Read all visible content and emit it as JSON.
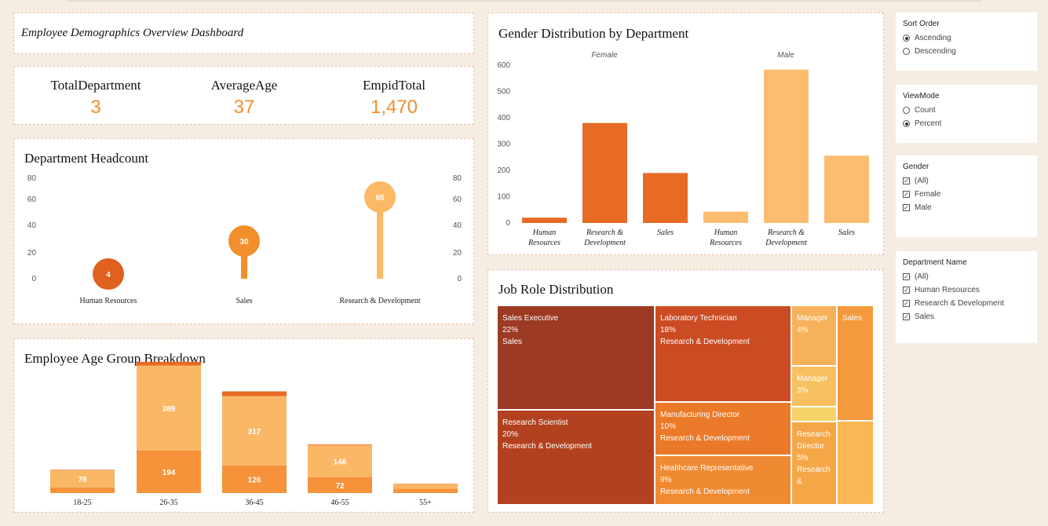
{
  "header": {
    "title": "Employee Demographics Overview Dashboard"
  },
  "kpis": [
    {
      "label": "TotalDepartment",
      "value": "3"
    },
    {
      "label": "AverageAge",
      "value": "37"
    },
    {
      "label": "EmpidTotal",
      "value": "1,470"
    }
  ],
  "headcount": {
    "title": "Department Headcount",
    "ticks": [
      "80",
      "60",
      "40",
      "20",
      "0"
    ],
    "colors": [
      "#e0601f",
      "#f28e2b",
      "#fbb965"
    ]
  },
  "gender_chart": {
    "title": "Gender Distribution by Department",
    "panels": [
      "Female",
      "Male"
    ],
    "ticks": [
      "600",
      "500",
      "400",
      "300",
      "200",
      "100",
      "0"
    ],
    "colors": {
      "Female": "#e86a24",
      "Male": "#fcbd70"
    }
  },
  "age_chart": {
    "title": "Employee Age Group Breakdown",
    "colors": {
      "bottom": "#f5923a",
      "top": "#fab766",
      "cap": "#e86a24"
    }
  },
  "job_roles": {
    "title": "Job Role Distribution",
    "cells": [
      {
        "role": "Sales Executive",
        "pct": "22%",
        "dept": "Sales",
        "color": "#9c3a24"
      },
      {
        "role": "Research Scientist",
        "pct": "20%",
        "dept": "Research & Development",
        "color": "#b2421f"
      },
      {
        "role": "Laboratory Technician",
        "pct": "18%",
        "dept": "Research & Development",
        "color": "#cb4b22"
      },
      {
        "role": "Manufacturing Director",
        "pct": "10%",
        "dept": "Research & Development",
        "color": "#ea7a29"
      },
      {
        "role": "Healthcare Representative",
        "pct": "9%",
        "dept": "Research & Development",
        "color": "#f08a32"
      },
      {
        "role": "Manager",
        "pct": "4%",
        "dept": "",
        "color": "#f6b25a"
      },
      {
        "role": "Manager",
        "pct": "3%",
        "dept": "",
        "color": "#f7c060"
      },
      {
        "role": "Research Director",
        "pct": "5%",
        "dept": "Research &",
        "color": "#f5a748"
      },
      {
        "role": "Sales",
        "pct": "",
        "dept": "",
        "color": "#f59a3c"
      }
    ]
  },
  "filters": {
    "sort_order": {
      "title": "Sort Order",
      "options": [
        "Ascending",
        "Descending"
      ],
      "selected": "Ascending"
    },
    "view_mode": {
      "title": "ViewMode",
      "options": [
        "Count",
        "Percent"
      ],
      "selected": "Percent"
    },
    "gender": {
      "title": "Gender",
      "options": [
        "(All)",
        "Female",
        "Male"
      ]
    },
    "department": {
      "title": "Department Name",
      "options": [
        "(All)",
        "Human Resources",
        "Research & Development",
        "Sales"
      ]
    }
  },
  "chart_data": [
    {
      "type": "bar",
      "title": "Department Headcount",
      "categories": [
        "Human Resources",
        "Sales",
        "Research & Development"
      ],
      "values": [
        4,
        30,
        65
      ],
      "ylim": [
        0,
        80
      ]
    },
    {
      "type": "bar",
      "title": "Gender Distribution by Department",
      "categories": [
        "Human Resources",
        "Research & Development",
        "Sales"
      ],
      "series": [
        {
          "name": "Female",
          "values": [
            20,
            380,
            190
          ]
        },
        {
          "name": "Male",
          "values": [
            43,
            583,
            256
          ]
        }
      ],
      "ylim": [
        0,
        600
      ]
    },
    {
      "type": "bar",
      "title": "Employee Age Group Breakdown",
      "categories": [
        "18-25",
        "26-35",
        "36-45",
        "46-55",
        "55+"
      ],
      "series": [
        {
          "values": [
            25,
            194,
            126,
            72,
            20
          ]
        },
        {
          "values": [
            78,
            389,
            317,
            146,
            22
          ]
        },
        {
          "values": [
            3,
            17,
            22,
            4,
            1
          ]
        }
      ],
      "labels_bottom": [
        "",
        "194",
        "126",
        "72",
        ""
      ],
      "labels_top": [
        "78",
        "389",
        "317",
        "146",
        ""
      ]
    }
  ]
}
